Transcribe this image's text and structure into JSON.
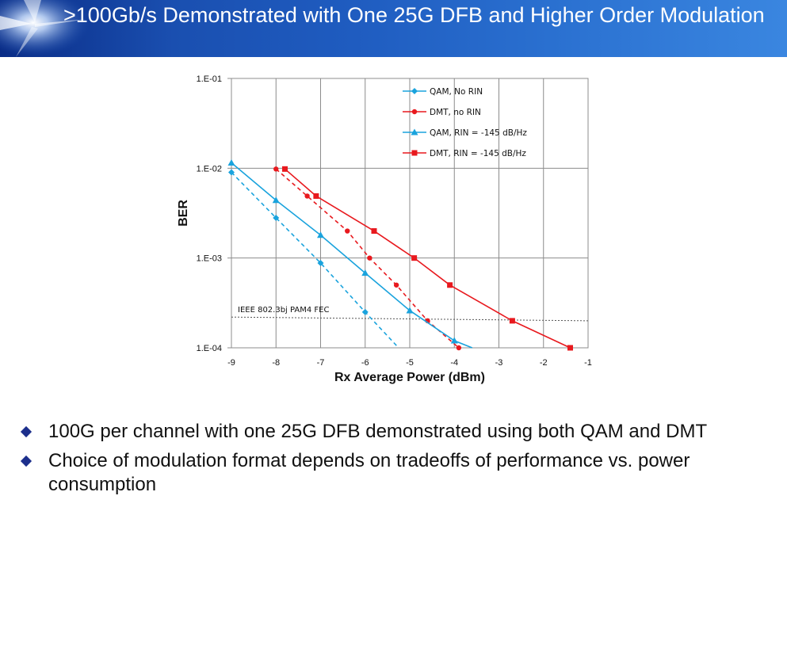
{
  "slide": {
    "title": ">100Gb/s Demonstrated with One 25G DFB and Higher Order Modulation",
    "bullets": [
      "100G per channel with one 25G DFB demonstrated using both QAM and DMT",
      "Choice of modulation format depends on tradeoffs of performance vs. power consumption"
    ],
    "colors": {
      "header": "#1f5cc0",
      "bullet": "#1c2f8c"
    }
  },
  "chart_data": {
    "type": "line",
    "title": "",
    "xlabel": "Rx Average Power (dBm)",
    "ylabel": "BER",
    "xlim": [
      -9,
      -1
    ],
    "ylim": [
      0.0001,
      0.1
    ],
    "yscale": "log",
    "xticks": [
      "-9",
      "-8",
      "-7",
      "-6",
      "-5",
      "-4",
      "-3",
      "-2",
      "-1"
    ],
    "yticks": [
      "1.E-04",
      "1.E-03",
      "1.E-02",
      "1.E-01"
    ],
    "grid": true,
    "legend_position": "top-right",
    "series": [
      {
        "name": "QAM, No RIN",
        "color": "#1aa3dd",
        "marker": "diamond",
        "dashed": true,
        "x": [
          -9,
          -8,
          -7,
          -6,
          -5.25
        ],
        "y": [
          0.009,
          0.0028,
          0.00088,
          0.00025,
          0.0001
        ]
      },
      {
        "name": "DMT, no RIN",
        "color": "#e8191e",
        "marker": "circle",
        "dashed": true,
        "x": [
          -8,
          -7.3,
          -6.4,
          -5.9,
          -5.3,
          -4.6,
          -3.9
        ],
        "y": [
          0.0098,
          0.0049,
          0.002,
          0.001,
          0.0005,
          0.0002,
          0.0001
        ]
      },
      {
        "name": "QAM, RIN = -145 dB/Hz",
        "color": "#1aa3dd",
        "marker": "triangle",
        "dashed": false,
        "x": [
          -9,
          -8,
          -7,
          -6,
          -5,
          -4,
          -3.6
        ],
        "y": [
          0.0115,
          0.0044,
          0.0018,
          0.00068,
          0.00026,
          0.00012,
          0.0001
        ]
      },
      {
        "name": "DMT, RIN = -145 dB/Hz",
        "color": "#e8191e",
        "marker": "square",
        "dashed": false,
        "x": [
          -7.8,
          -7.1,
          -5.8,
          -4.9,
          -4.1,
          -2.7,
          -1.4
        ],
        "y": [
          0.0098,
          0.0049,
          0.002,
          0.001,
          0.0005,
          0.0002,
          0.0001
        ]
      }
    ],
    "annotations": [
      {
        "text": "IEEE 802.3bj PAM4 FEC",
        "x1": -9,
        "y1": 0.00022,
        "x2": -1,
        "y2": 0.0002,
        "color": "#555555"
      }
    ]
  }
}
